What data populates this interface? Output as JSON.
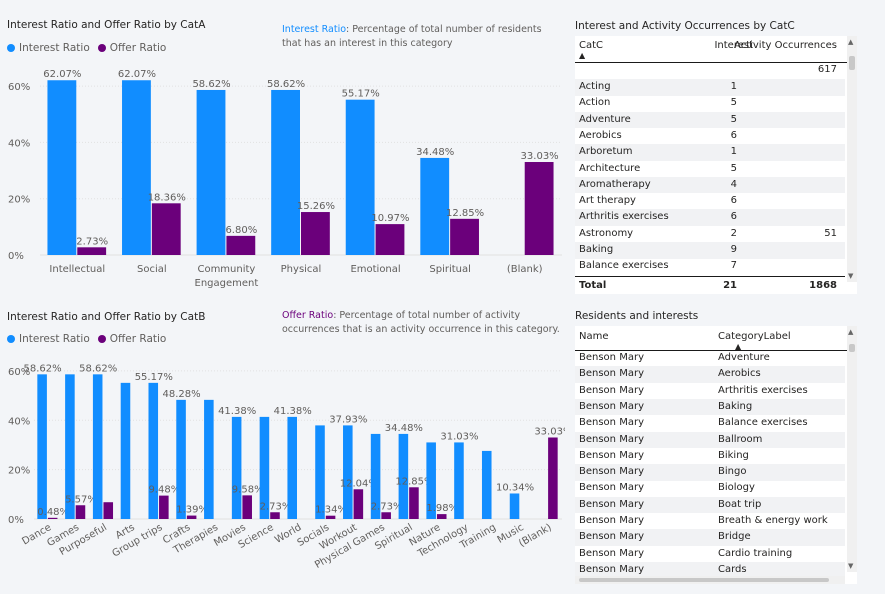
{
  "chart1": {
    "title": "Interest Ratio and Offer Ratio by CatA",
    "legend": {
      "interest": "Interest Ratio",
      "offer": "Offer Ratio"
    },
    "note_label": "Interest Ratio",
    "note_text": ": Percentage of total number of residents that has an interest in this category",
    "colors": {
      "interest": "#118dff",
      "offer": "#6b007b",
      "note_label": "#118dff"
    },
    "chart_data": {
      "type": "bar",
      "categories": [
        "Intellectual",
        "Social",
        "Community Engagement",
        "Physical",
        "Emotional",
        "Spiritual",
        "(Blank)"
      ],
      "series": [
        {
          "name": "Interest Ratio",
          "values": [
            62.07,
            62.07,
            58.62,
            58.62,
            55.17,
            34.48,
            null
          ],
          "labels": [
            "62.07%",
            "62.07%",
            "58.62%",
            "58.62%",
            "55.17%",
            "34.48%",
            ""
          ]
        },
        {
          "name": "Offer Ratio",
          "values": [
            2.73,
            18.36,
            6.8,
            15.26,
            10.97,
            12.85,
            33.03
          ],
          "labels": [
            "2.73%",
            "18.36%",
            "6.80%",
            "15.26%",
            "10.97%",
            "12.85%",
            "33.03%"
          ]
        }
      ],
      "yticks": [
        "0%",
        "20%",
        "40%",
        "60%"
      ],
      "ylim": [
        0,
        65
      ]
    }
  },
  "chart2": {
    "title": "Interest Ratio and Offer Ratio by CatB",
    "legend": {
      "interest": "Interest Ratio",
      "offer": "Offer Ratio"
    },
    "note_label": "Offer Ratio",
    "note_text": ": Percentage of total number of activity occurrences that is an activity occurrence in this category.",
    "colors": {
      "interest": "#118dff",
      "offer": "#6b007b",
      "note_label": "#6b007b"
    },
    "chart_data": {
      "type": "bar",
      "categories": [
        "Dance",
        "Games",
        "Purposeful",
        "Arts",
        "Group trips",
        "Crafts",
        "Therapies",
        "Movies",
        "Science",
        "World",
        "Socials",
        "Workout",
        "Physical Games",
        "Spiritual",
        "Nature",
        "Technology",
        "Training",
        "Music",
        "(Blank)"
      ],
      "series": [
        {
          "name": "Interest Ratio",
          "values": [
            58.62,
            58.62,
            58.62,
            55.17,
            55.17,
            48.28,
            48.28,
            41.38,
            41.38,
            41.38,
            37.93,
            37.93,
            34.48,
            34.48,
            31.03,
            31.03,
            27.59,
            10.34,
            null
          ],
          "labels": [
            "58.62%",
            "",
            "58.62%",
            "",
            "55.17%",
            "48.28%",
            "",
            "41.38%",
            "",
            "41.38%",
            "",
            "37.93%",
            "",
            "34.48%",
            "",
            "31.03%",
            "",
            "10.34%",
            ""
          ]
        },
        {
          "name": "Offer Ratio",
          "values": [
            0.48,
            5.57,
            6.8,
            null,
            9.48,
            1.39,
            null,
            9.58,
            2.73,
            null,
            1.34,
            12.04,
            2.73,
            12.85,
            1.98,
            null,
            null,
            null,
            33.03
          ],
          "labels": [
            "0.48%",
            "5.57%",
            "",
            "",
            "9.48%",
            "1.39%",
            "",
            "9.58%",
            "2.73%",
            "",
            "1.34%",
            "12.04%",
            "2.73%",
            "12.85%",
            "1.98%",
            "",
            "",
            "",
            "33.03%"
          ]
        }
      ],
      "yticks": [
        "0%",
        "20%",
        "40%",
        "60%"
      ],
      "ylim": [
        0,
        62
      ]
    }
  },
  "table1": {
    "title": "Interest and Activity Occurrences by CatC",
    "columns": [
      "CatC",
      "Interest",
      "Activity Occurrences"
    ],
    "blank_row": {
      "name": "",
      "interest": "",
      "occ": "617"
    },
    "rows": [
      {
        "name": "Acting",
        "interest": "1",
        "occ": ""
      },
      {
        "name": "Action",
        "interest": "5",
        "occ": ""
      },
      {
        "name": "Adventure",
        "interest": "5",
        "occ": ""
      },
      {
        "name": "Aerobics",
        "interest": "6",
        "occ": ""
      },
      {
        "name": "Arboretum",
        "interest": "1",
        "occ": ""
      },
      {
        "name": "Architecture",
        "interest": "5",
        "occ": ""
      },
      {
        "name": "Aromatherapy",
        "interest": "4",
        "occ": ""
      },
      {
        "name": "Art therapy",
        "interest": "6",
        "occ": ""
      },
      {
        "name": "Arthritis exercises",
        "interest": "6",
        "occ": ""
      },
      {
        "name": "Astronomy",
        "interest": "2",
        "occ": "51"
      },
      {
        "name": "Baking",
        "interest": "9",
        "occ": ""
      },
      {
        "name": "Balance exercises",
        "interest": "7",
        "occ": ""
      }
    ],
    "total": {
      "label": "Total",
      "interest": "21",
      "occ": "1868"
    }
  },
  "table2": {
    "title": "Residents and interests",
    "columns": [
      "Name",
      "CategoryLabel"
    ],
    "rows": [
      {
        "name": "Benson Mary",
        "label": "Adventure"
      },
      {
        "name": "Benson Mary",
        "label": "Aerobics"
      },
      {
        "name": "Benson Mary",
        "label": "Arthritis exercises"
      },
      {
        "name": "Benson Mary",
        "label": "Baking"
      },
      {
        "name": "Benson Mary",
        "label": "Balance exercises"
      },
      {
        "name": "Benson Mary",
        "label": "Ballroom"
      },
      {
        "name": "Benson Mary",
        "label": "Biking"
      },
      {
        "name": "Benson Mary",
        "label": "Bingo"
      },
      {
        "name": "Benson Mary",
        "label": "Biology"
      },
      {
        "name": "Benson Mary",
        "label": "Boat trip"
      },
      {
        "name": "Benson Mary",
        "label": "Breath & energy work"
      },
      {
        "name": "Benson Mary",
        "label": "Bridge"
      },
      {
        "name": "Benson Mary",
        "label": "Cardio training"
      },
      {
        "name": "Benson Mary",
        "label": "Cards"
      }
    ]
  }
}
